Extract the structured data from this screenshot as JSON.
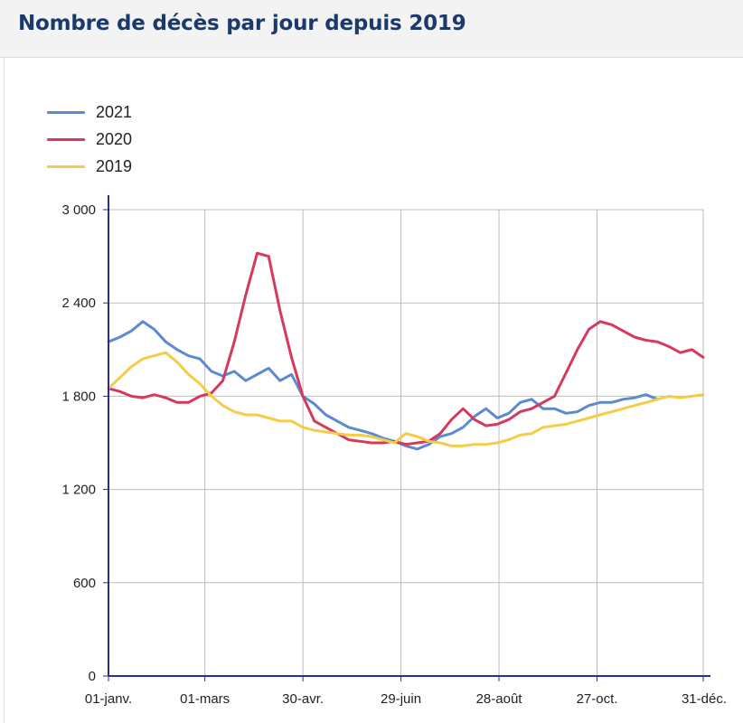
{
  "header": {
    "title": "Nombre de décès par jour depuis 2019"
  },
  "chart_data": {
    "type": "line",
    "x_ticks": [
      "01-janv.",
      "01-mars",
      "30-avr.",
      "29-juin",
      "28-août",
      "27-oct.",
      "31-déc."
    ],
    "y_ticks": [
      "0",
      "600",
      "1 200",
      "1 800",
      "2 400",
      "3 000"
    ],
    "ylim": [
      0,
      3000
    ],
    "grid": true,
    "legend_position": "top-left",
    "series": [
      {
        "name": "2021",
        "color": "#5b8ad0",
        "x": [
          "01-01",
          "01-08",
          "01-15",
          "01-22",
          "01-29",
          "02-05",
          "02-12",
          "02-19",
          "02-26",
          "03-05",
          "03-12",
          "03-19",
          "03-26",
          "04-02",
          "04-09",
          "04-16",
          "04-23",
          "04-30",
          "05-07",
          "05-14",
          "05-21",
          "05-28",
          "06-04",
          "06-11",
          "06-18",
          "06-25",
          "07-02",
          "07-09",
          "07-16",
          "07-23",
          "07-30",
          "08-06",
          "08-13",
          "08-20",
          "08-27",
          "09-03",
          "09-10",
          "09-17",
          "09-24",
          "10-01",
          "10-08",
          "10-15",
          "10-22",
          "10-29",
          "11-05",
          "11-12",
          "11-19",
          "11-26",
          "12-03"
        ],
        "values": [
          2150,
          2180,
          2220,
          2280,
          2230,
          2150,
          2100,
          2060,
          2040,
          1960,
          1930,
          1960,
          1900,
          1940,
          1980,
          1900,
          1940,
          1800,
          1750,
          1680,
          1640,
          1600,
          1580,
          1560,
          1530,
          1510,
          1480,
          1460,
          1490,
          1540,
          1560,
          1600,
          1670,
          1720,
          1660,
          1690,
          1760,
          1780,
          1720,
          1720,
          1690,
          1700,
          1740,
          1760,
          1760,
          1780,
          1790,
          1810,
          1780
        ]
      },
      {
        "name": "2020",
        "color": "#d6395b",
        "x": [
          "01-01",
          "01-08",
          "01-15",
          "01-22",
          "01-29",
          "02-05",
          "02-12",
          "02-19",
          "02-26",
          "03-05",
          "03-12",
          "03-19",
          "03-26",
          "04-02",
          "04-09",
          "04-16",
          "04-23",
          "04-30",
          "05-07",
          "05-14",
          "05-21",
          "05-28",
          "06-04",
          "06-11",
          "06-18",
          "06-25",
          "07-02",
          "07-09",
          "07-16",
          "07-23",
          "07-30",
          "08-06",
          "08-13",
          "08-20",
          "08-27",
          "09-03",
          "09-10",
          "09-17",
          "09-24",
          "10-01",
          "10-08",
          "10-15",
          "10-22",
          "10-29",
          "11-05",
          "11-12",
          "11-19",
          "11-26",
          "12-03",
          "12-10",
          "12-17",
          "12-24",
          "12-31"
        ],
        "values": [
          1850,
          1830,
          1800,
          1790,
          1810,
          1790,
          1760,
          1760,
          1800,
          1820,
          1900,
          2150,
          2450,
          2720,
          2700,
          2350,
          2050,
          1800,
          1640,
          1600,
          1560,
          1520,
          1510,
          1500,
          1500,
          1510,
          1490,
          1500,
          1510,
          1560,
          1650,
          1720,
          1650,
          1610,
          1620,
          1650,
          1700,
          1720,
          1760,
          1800,
          1950,
          2100,
          2230,
          2280,
          2260,
          2220,
          2180,
          2160,
          2150,
          2120,
          2080,
          2100,
          2050
        ]
      },
      {
        "name": "2019",
        "color": "#f5cc45",
        "x": [
          "01-01",
          "01-08",
          "01-15",
          "01-22",
          "01-29",
          "02-05",
          "02-12",
          "02-19",
          "02-26",
          "03-05",
          "03-12",
          "03-19",
          "03-26",
          "04-02",
          "04-09",
          "04-16",
          "04-23",
          "04-30",
          "05-07",
          "05-14",
          "05-21",
          "05-28",
          "06-04",
          "06-11",
          "06-18",
          "06-25",
          "07-02",
          "07-09",
          "07-16",
          "07-23",
          "07-30",
          "08-06",
          "08-13",
          "08-20",
          "08-27",
          "09-03",
          "09-10",
          "09-17",
          "09-24",
          "10-01",
          "10-08",
          "10-15",
          "10-22",
          "10-29",
          "11-05",
          "11-12",
          "11-19",
          "11-26",
          "12-03",
          "12-10",
          "12-17",
          "12-24",
          "12-31"
        ],
        "values": [
          1850,
          1920,
          1990,
          2040,
          2060,
          2080,
          2020,
          1940,
          1880,
          1800,
          1740,
          1700,
          1680,
          1680,
          1660,
          1640,
          1640,
          1600,
          1580,
          1570,
          1560,
          1550,
          1550,
          1540,
          1520,
          1500,
          1560,
          1540,
          1510,
          1500,
          1480,
          1480,
          1490,
          1490,
          1500,
          1520,
          1550,
          1560,
          1600,
          1610,
          1620,
          1640,
          1660,
          1680,
          1700,
          1720,
          1740,
          1760,
          1780,
          1800,
          1790,
          1800,
          1810
        ]
      }
    ]
  }
}
